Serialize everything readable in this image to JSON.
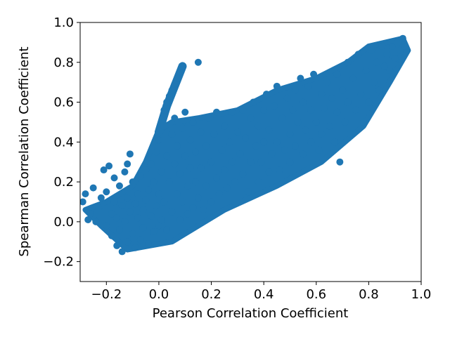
{
  "chart_data": {
    "type": "scatter",
    "title": "",
    "xlabel": "Pearson Correlation Coefficient",
    "ylabel": "Spearman Correlation Coefficient",
    "xlim": [
      -0.3,
      1.0
    ],
    "ylim": [
      -0.3,
      1.0
    ],
    "x_ticks": [
      -0.2,
      0.0,
      0.2,
      0.4,
      0.6,
      0.8,
      1.0
    ],
    "x_tick_labels": [
      "−0.2",
      "0.0",
      "0.2",
      "0.4",
      "0.6",
      "0.8",
      "1.0"
    ],
    "y_ticks": [
      -0.2,
      0.0,
      0.2,
      0.4,
      0.6,
      0.8,
      1.0
    ],
    "y_tick_labels": [
      "−0.2",
      "0.0",
      "0.2",
      "0.4",
      "0.6",
      "0.8",
      "1.0"
    ],
    "grid": false,
    "legend": "none",
    "marker_color": "#1f77b4",
    "series": [
      {
        "points": [
          [
            -0.29,
            0.1
          ],
          [
            -0.28,
            0.14
          ],
          [
            -0.27,
            0.01
          ],
          [
            -0.26,
            0.04
          ],
          [
            -0.25,
            0.17
          ],
          [
            -0.24,
            0.0
          ],
          [
            -0.23,
            0.07
          ],
          [
            -0.22,
            0.12
          ],
          [
            -0.21,
            0.26
          ],
          [
            -0.2,
            0.15
          ],
          [
            -0.2,
            -0.02
          ],
          [
            -0.19,
            0.28
          ],
          [
            -0.18,
            0.04
          ],
          [
            -0.18,
            -0.07
          ],
          [
            -0.17,
            0.1
          ],
          [
            -0.17,
            0.22
          ],
          [
            -0.16,
            -0.12
          ],
          [
            -0.16,
            0.02
          ],
          [
            -0.15,
            0.18
          ],
          [
            -0.15,
            -0.04
          ],
          [
            -0.14,
            0.08
          ],
          [
            -0.14,
            -0.15
          ],
          [
            -0.13,
            0.25
          ],
          [
            -0.13,
            0.0
          ],
          [
            -0.12,
            0.29
          ],
          [
            -0.12,
            0.12
          ],
          [
            -0.12,
            -0.1
          ],
          [
            -0.11,
            0.34
          ],
          [
            -0.11,
            0.05
          ],
          [
            -0.1,
            -0.06
          ],
          [
            -0.1,
            0.2
          ],
          [
            -0.09,
            0.09
          ],
          [
            -0.09,
            -0.13
          ],
          [
            -0.08,
            0.14
          ],
          [
            -0.08,
            0.02
          ],
          [
            -0.07,
            -0.09
          ],
          [
            -0.07,
            0.23
          ],
          [
            -0.06,
            0.06
          ],
          [
            -0.06,
            -0.03
          ],
          [
            -0.05,
            0.26
          ],
          [
            -0.05,
            0.11
          ],
          [
            -0.04,
            -0.11
          ],
          [
            -0.04,
            0.16
          ],
          [
            -0.03,
            0.03
          ],
          [
            -0.03,
            0.29
          ],
          [
            -0.02,
            -0.05
          ],
          [
            -0.02,
            0.2
          ],
          [
            -0.01,
            0.08
          ],
          [
            -0.01,
            0.35
          ],
          [
            0.0,
            -0.02
          ],
          [
            0.0,
            0.14
          ],
          [
            0.0,
            0.41
          ],
          [
            0.01,
            0.25
          ],
          [
            0.01,
            0.01
          ],
          [
            0.02,
            0.48
          ],
          [
            0.02,
            0.1
          ],
          [
            0.03,
            0.33
          ],
          [
            0.03,
            -0.04
          ],
          [
            0.02,
            0.56
          ],
          [
            0.03,
            0.6
          ],
          [
            0.04,
            0.63
          ],
          [
            0.05,
            0.66
          ],
          [
            0.06,
            0.69
          ],
          [
            0.07,
            0.72
          ],
          [
            0.08,
            0.75
          ],
          [
            0.09,
            0.78
          ],
          [
            0.04,
            0.2
          ],
          [
            0.05,
            0.44
          ],
          [
            0.05,
            0.05
          ],
          [
            0.06,
            0.29
          ],
          [
            0.06,
            0.52
          ],
          [
            0.07,
            0.14
          ],
          [
            0.07,
            0.38
          ],
          [
            0.08,
            0.01
          ],
          [
            0.08,
            0.24
          ],
          [
            0.09,
            0.47
          ],
          [
            0.09,
            0.1
          ],
          [
            0.1,
            0.33
          ],
          [
            0.1,
            0.55
          ],
          [
            0.11,
            0.18
          ],
          [
            0.11,
            0.04
          ],
          [
            0.12,
            0.41
          ],
          [
            0.12,
            0.27
          ],
          [
            0.13,
            0.07
          ],
          [
            0.13,
            0.5
          ],
          [
            0.14,
            0.2
          ],
          [
            0.14,
            0.35
          ],
          [
            0.15,
            0.8
          ],
          [
            0.15,
            0.12
          ],
          [
            0.16,
            0.45
          ],
          [
            0.16,
            0.27
          ],
          [
            0.17,
            0.06
          ],
          [
            0.18,
            0.38
          ],
          [
            0.18,
            0.18
          ],
          [
            0.19,
            0.52
          ],
          [
            0.2,
            0.1
          ],
          [
            0.2,
            0.3
          ],
          [
            0.21,
            0.44
          ],
          [
            0.22,
            0.22
          ],
          [
            0.22,
            0.55
          ],
          [
            0.23,
            0.14
          ],
          [
            0.24,
            0.36
          ],
          [
            0.25,
            0.48
          ],
          [
            0.25,
            0.26
          ],
          [
            0.26,
            0.17
          ],
          [
            0.27,
            0.4
          ],
          [
            0.28,
            0.55
          ],
          [
            0.28,
            0.3
          ],
          [
            0.29,
            0.2
          ],
          [
            0.3,
            0.45
          ],
          [
            0.31,
            0.34
          ],
          [
            0.32,
            0.56
          ],
          [
            0.32,
            0.24
          ],
          [
            0.33,
            0.42
          ],
          [
            0.34,
            0.15
          ],
          [
            0.35,
            0.52
          ],
          [
            0.35,
            0.3
          ],
          [
            0.36,
            0.6
          ],
          [
            0.37,
            0.38
          ],
          [
            0.38,
            0.2
          ],
          [
            0.38,
            0.48
          ],
          [
            0.39,
            0.3
          ],
          [
            0.4,
            0.56
          ],
          [
            0.4,
            0.4
          ],
          [
            0.41,
            0.64
          ],
          [
            0.42,
            0.25
          ],
          [
            0.42,
            0.46
          ],
          [
            0.43,
            0.34
          ],
          [
            0.44,
            0.58
          ],
          [
            0.45,
            0.68
          ],
          [
            0.45,
            0.4
          ],
          [
            0.46,
            0.26
          ],
          [
            0.47,
            0.52
          ],
          [
            0.48,
            0.36
          ],
          [
            0.49,
            0.62
          ],
          [
            0.5,
            0.44
          ],
          [
            0.5,
            0.3
          ],
          [
            0.51,
            0.56
          ],
          [
            0.52,
            0.66
          ],
          [
            0.52,
            0.38
          ],
          [
            0.53,
            0.5
          ],
          [
            0.54,
            0.72
          ],
          [
            0.55,
            0.34
          ],
          [
            0.55,
            0.6
          ],
          [
            0.56,
            0.46
          ],
          [
            0.57,
            0.68
          ],
          [
            0.58,
            0.4
          ],
          [
            0.58,
            0.56
          ],
          [
            0.59,
            0.74
          ],
          [
            0.6,
            0.5
          ],
          [
            0.61,
            0.36
          ],
          [
            0.62,
            0.64
          ],
          [
            0.62,
            0.44
          ],
          [
            0.63,
            0.57
          ],
          [
            0.64,
            0.7
          ],
          [
            0.65,
            0.48
          ],
          [
            0.66,
            0.62
          ],
          [
            0.67,
            0.4
          ],
          [
            0.68,
            0.74
          ],
          [
            0.68,
            0.55
          ],
          [
            0.69,
            0.3
          ],
          [
            0.7,
            0.66
          ],
          [
            0.71,
            0.5
          ],
          [
            0.72,
            0.8
          ],
          [
            0.72,
            0.6
          ],
          [
            0.73,
            0.44
          ],
          [
            0.74,
            0.72
          ],
          [
            0.75,
            0.56
          ],
          [
            0.76,
            0.84
          ],
          [
            0.77,
            0.64
          ],
          [
            0.78,
            0.5
          ],
          [
            0.79,
            0.76
          ],
          [
            0.8,
            0.6
          ],
          [
            0.81,
            0.86
          ],
          [
            0.82,
            0.7
          ],
          [
            0.83,
            0.8
          ],
          [
            0.84,
            0.66
          ],
          [
            0.85,
            0.88
          ],
          [
            0.86,
            0.78
          ],
          [
            0.87,
            0.84
          ],
          [
            0.88,
            0.76
          ],
          [
            0.89,
            0.88
          ],
          [
            0.9,
            0.82
          ],
          [
            0.91,
            0.9
          ],
          [
            0.92,
            0.86
          ],
          [
            0.93,
            0.92
          ],
          [
            0.94,
            0.88
          ]
        ]
      }
    ]
  }
}
